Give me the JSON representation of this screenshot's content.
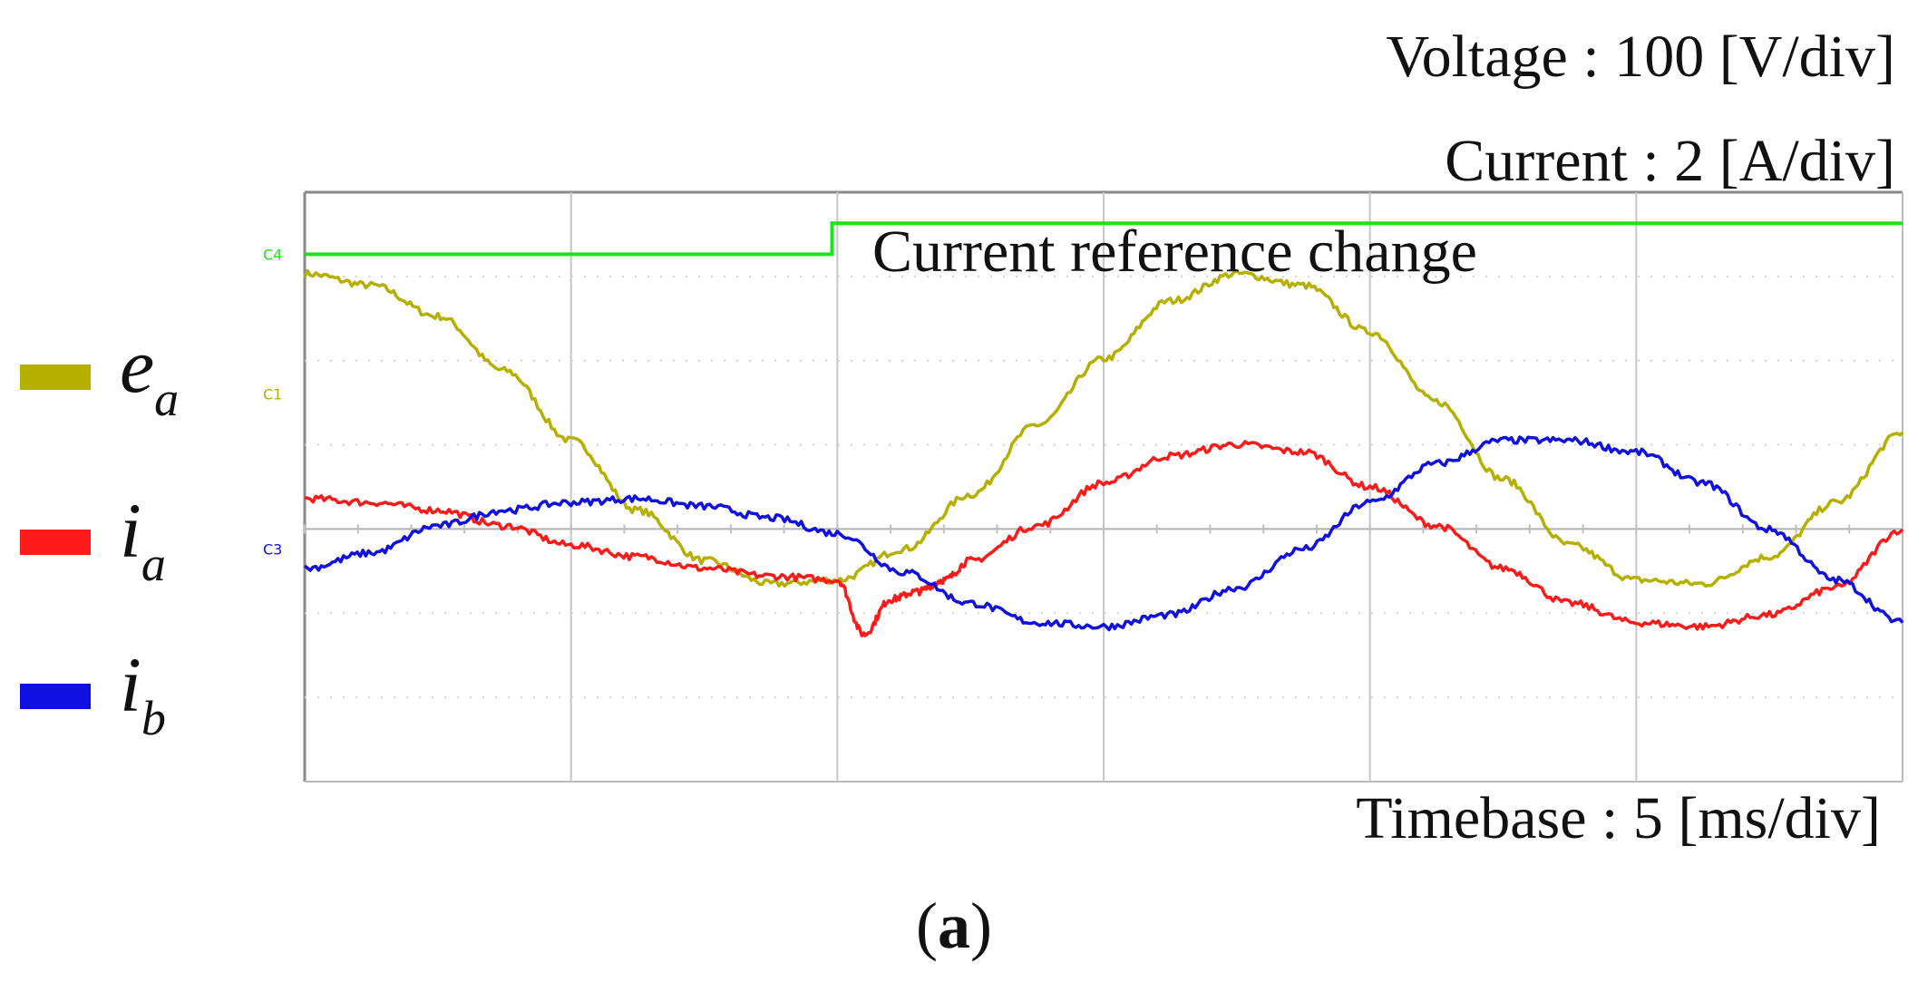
{
  "header": {
    "voltage_scale": "Voltage : 100 [V/div]",
    "current_scale": "Current : 2 [A/div]"
  },
  "footer": {
    "timebase": "Timebase : 5 [ms/div]",
    "caption_open": "(",
    "caption_letter": "a",
    "caption_close": ")"
  },
  "legend": {
    "items": [
      {
        "symbol": "e",
        "sub": "a",
        "color": "#b5b000"
      },
      {
        "symbol": "i",
        "sub": "a",
        "color": "#ff1a1a"
      },
      {
        "symbol": "i",
        "sub": "b",
        "color": "#1010e0"
      }
    ]
  },
  "annotation": "Current reference change",
  "channel_tags": [
    "C4",
    "C1",
    "C3"
  ],
  "chart_data": {
    "type": "line",
    "title": "",
    "xlabel": "",
    "ylabel": "",
    "x_unit": "div (5 ms/div)",
    "xlim": [
      0,
      6
    ],
    "ylim": [
      -3.8,
      3.8
    ],
    "grid": true,
    "legend_position": "left",
    "series": [
      {
        "name": "e_a",
        "color": "#b5b000",
        "x": [
          0,
          0.25,
          0.5,
          0.75,
          1.0,
          1.25,
          1.5,
          1.75,
          2.0,
          2.25,
          2.5,
          2.75,
          3.0,
          3.25,
          3.5,
          3.75,
          4.0,
          4.25,
          4.5,
          4.75,
          5.0,
          5.25,
          5.5,
          5.75,
          6.0
        ],
        "values": [
          2.75,
          2.6,
          2.2,
          1.5,
          0.6,
          -0.3,
          -0.95,
          -1.25,
          -1.2,
          -0.8,
          -0.1,
          0.8,
          1.65,
          2.4,
          2.75,
          2.6,
          2.0,
          1.1,
          0.1,
          -0.75,
          -1.2,
          -1.25,
          -0.9,
          -0.2,
          0.7
        ]
      },
      {
        "name": "i_a",
        "color": "#ff1a1a",
        "x": [
          0,
          0.25,
          0.5,
          0.75,
          1.0,
          1.25,
          1.5,
          1.75,
          2.0,
          2.1,
          2.2,
          2.3,
          2.4,
          2.5,
          2.75,
          3.0,
          3.25,
          3.5,
          3.75,
          4.0,
          4.25,
          4.5,
          4.75,
          5.0,
          5.25,
          5.5,
          5.75,
          6.0
        ],
        "values": [
          -0.15,
          -0.2,
          -0.3,
          -0.5,
          -0.75,
          -0.9,
          -1.05,
          -1.15,
          -1.2,
          -1.9,
          -1.45,
          -1.35,
          -1.2,
          -0.95,
          -0.5,
          0.05,
          0.4,
          0.55,
          0.45,
          0.0,
          -0.5,
          -1.05,
          -1.5,
          -1.75,
          -1.8,
          -1.65,
          -1.3,
          -0.55
        ]
      },
      {
        "name": "i_b",
        "color": "#1010e0",
        "x": [
          0,
          0.25,
          0.5,
          0.75,
          1.0,
          1.25,
          1.5,
          1.75,
          2.0,
          2.25,
          2.5,
          2.75,
          3.0,
          3.25,
          3.5,
          3.75,
          4.0,
          4.25,
          4.5,
          4.75,
          5.0,
          5.25,
          5.5,
          5.75,
          6.0
        ],
        "values": [
          -1.05,
          -0.85,
          -0.5,
          -0.3,
          -0.2,
          -0.15,
          -0.25,
          -0.4,
          -0.6,
          -1.1,
          -1.5,
          -1.75,
          -1.8,
          -1.65,
          -1.3,
          -0.8,
          -0.2,
          0.3,
          0.6,
          0.6,
          0.45,
          0.05,
          -0.55,
          -1.2,
          -1.75
        ]
      },
      {
        "name": "current_reference",
        "color": "#19e619",
        "x": [
          0,
          1.98,
          1.98,
          6.0
        ],
        "values": [
          3.0,
          3.0,
          3.4,
          3.4
        ]
      }
    ]
  }
}
